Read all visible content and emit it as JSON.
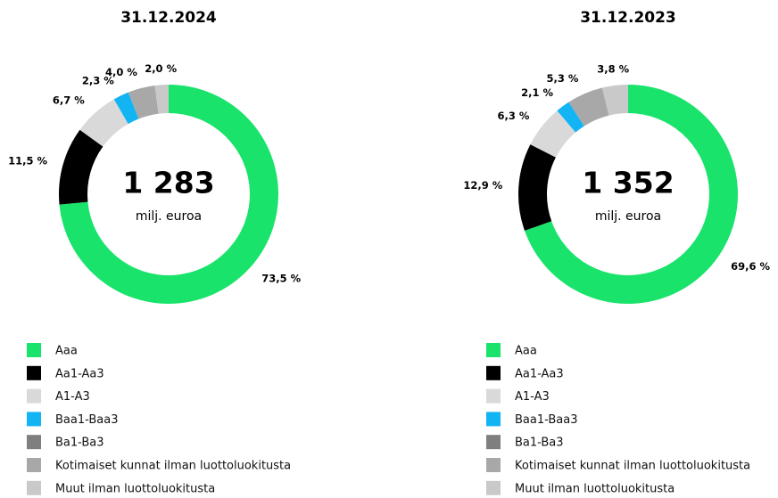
{
  "chart_data": [
    {
      "type": "donut",
      "title": "31.12.2024",
      "center_value": "1 283",
      "center_label": "milj. euroa",
      "categories": [
        "Aaa",
        "Aa1-Aa3",
        "A1-A3",
        "Baa1-Baa3",
        "Ba1-Ba3",
        "Kotimaiset kunnat ilman luottoluokitusta",
        "Muut ilman luottoluokitusta"
      ],
      "values": [
        73.5,
        11.5,
        6.7,
        2.3,
        0,
        4.0,
        2.0
      ],
      "value_labels": [
        "73,5 %",
        "11,5 %",
        "6,7 %",
        "2,3 %",
        null,
        "4,0 %",
        "2,0 %"
      ],
      "colors": [
        "#19e36b",
        "#000000",
        "#d9d9d9",
        "#12b4f4",
        "#7f7f7f",
        "#a8a8a8",
        "#c9c9c9"
      ]
    },
    {
      "type": "donut",
      "title": "31.12.2023",
      "center_value": "1 352",
      "center_label": "milj. euroa",
      "categories": [
        "Aaa",
        "Aa1-Aa3",
        "A1-A3",
        "Baa1-Baa3",
        "Ba1-Ba3",
        "Kotimaiset kunnat ilman luottoluokitusta",
        "Muut ilman luottoluokitusta"
      ],
      "values": [
        69.6,
        12.9,
        6.3,
        2.1,
        0,
        5.3,
        3.8
      ],
      "value_labels": [
        "69,6 %",
        "12,9 %",
        "6,3 %",
        "2,1 %",
        null,
        "5,3 %",
        "3,8 %"
      ],
      "colors": [
        "#19e36b",
        "#000000",
        "#d9d9d9",
        "#12b4f4",
        "#7f7f7f",
        "#a8a8a8",
        "#c9c9c9"
      ]
    }
  ]
}
